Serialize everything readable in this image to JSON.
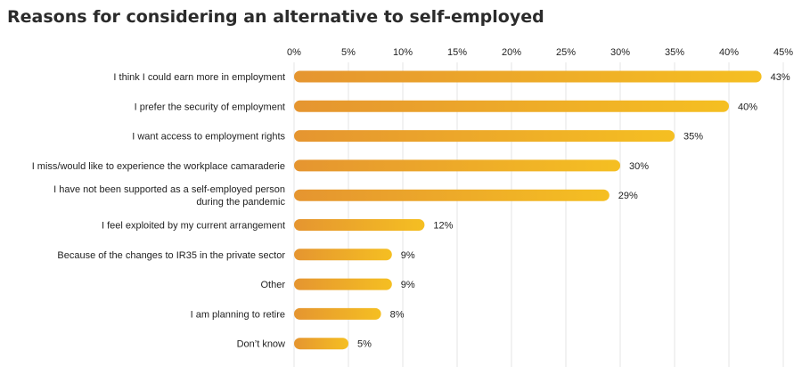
{
  "chart_data": {
    "type": "bar",
    "orientation": "horizontal",
    "title": "Reasons for considering an alternative to self-employed",
    "xlim": [
      0,
      45
    ],
    "xticks": [
      "0%",
      "5%",
      "10%",
      "15%",
      "20%",
      "25%",
      "30%",
      "35%",
      "40%",
      "45%"
    ],
    "grid": true,
    "categories": [
      "I think I could earn more in employment",
      "I prefer the security of employment",
      "I want access to employment rights",
      "I miss/would like to experience the workplace camaraderie",
      "I have not been supported as a self-employed person during the pandemic",
      "I feel exploited by my current arrangement",
      "Because of the changes to IR35 in the private sector",
      "Other",
      "I am planning to retire",
      "Don’t know"
    ],
    "values": [
      43,
      40,
      35,
      30,
      29,
      12,
      9,
      9,
      8,
      5
    ],
    "value_labels": [
      "43%",
      "40%",
      "35%",
      "30%",
      "29%",
      "12%",
      "9%",
      "9%",
      "8%",
      "5%"
    ],
    "colors": {
      "bar_start": "#e59530",
      "bar_end": "#f5bf22"
    }
  }
}
